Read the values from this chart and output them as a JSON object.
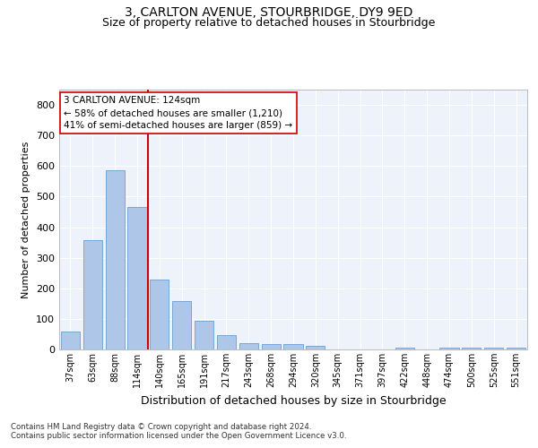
{
  "title": "3, CARLTON AVENUE, STOURBRIDGE, DY9 9ED",
  "subtitle": "Size of property relative to detached houses in Stourbridge",
  "xlabel": "Distribution of detached houses by size in Stourbridge",
  "ylabel": "Number of detached properties",
  "bar_labels": [
    "37sqm",
    "63sqm",
    "88sqm",
    "114sqm",
    "140sqm",
    "165sqm",
    "191sqm",
    "217sqm",
    "243sqm",
    "268sqm",
    "294sqm",
    "320sqm",
    "345sqm",
    "371sqm",
    "397sqm",
    "422sqm",
    "448sqm",
    "474sqm",
    "500sqm",
    "525sqm",
    "551sqm"
  ],
  "bar_values": [
    60,
    357,
    587,
    465,
    229,
    158,
    95,
    48,
    20,
    17,
    17,
    12,
    0,
    0,
    0,
    5,
    0,
    7,
    5,
    5,
    5
  ],
  "bar_color": "#aec6e8",
  "bar_edge_color": "#6a9fcf",
  "ylim": [
    0,
    850
  ],
  "yticks": [
    0,
    100,
    200,
    300,
    400,
    500,
    600,
    700,
    800
  ],
  "property_line_x": 3.5,
  "property_line_color": "#cc0000",
  "annotation_text": "3 CARLTON AVENUE: 124sqm\n← 58% of detached houses are smaller (1,210)\n41% of semi-detached houses are larger (859) →",
  "annotation_box_color": "#ffffff",
  "annotation_box_edge": "#cc0000",
  "footer_line1": "Contains HM Land Registry data © Crown copyright and database right 2024.",
  "footer_line2": "Contains public sector information licensed under the Open Government Licence v3.0.",
  "bg_color": "#eef3fb",
  "title_fontsize": 10,
  "subtitle_fontsize": 9,
  "ylabel_fontsize": 8,
  "xlabel_fontsize": 9
}
